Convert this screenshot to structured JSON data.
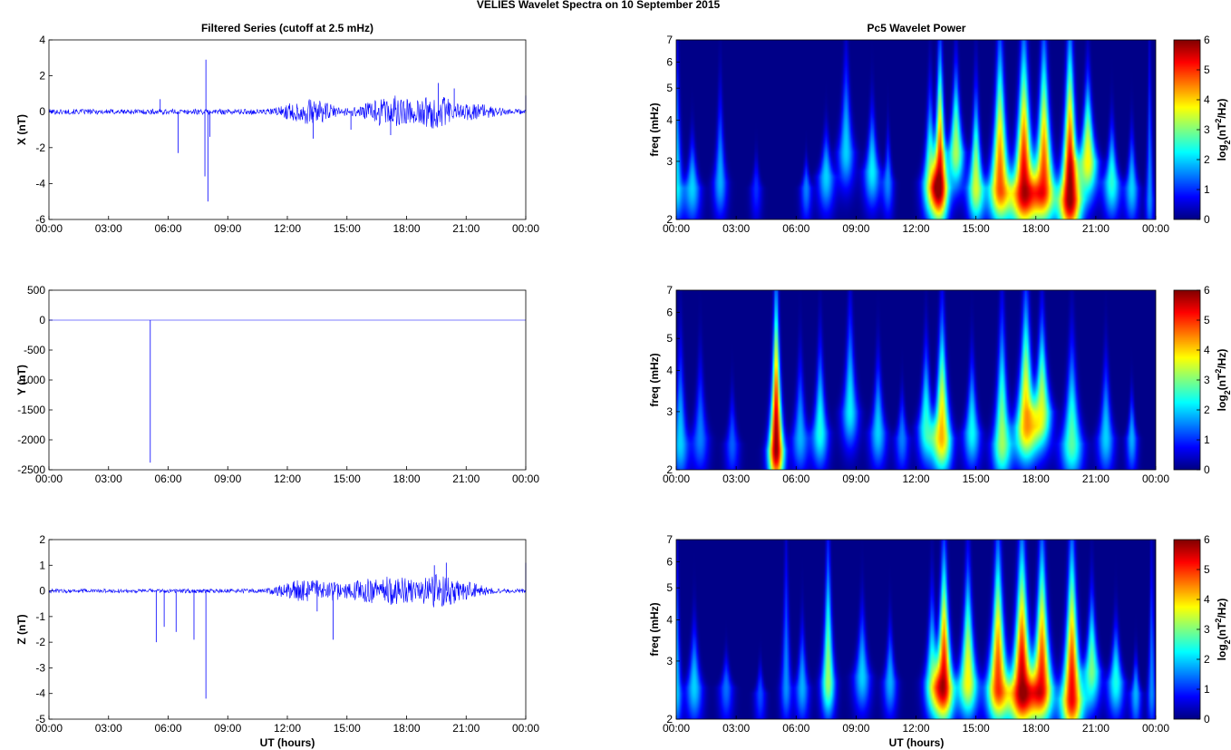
{
  "figure_title": "VELIES Wavelet Spectra on 10 September 2015",
  "left_title": "Filtered Series (cutoff at 2.5 mHz)",
  "right_title": "Pc5 Wavelet Power",
  "x_axis_label": "UT (hours)",
  "time_ticks": [
    "00:00",
    "03:00",
    "06:00",
    "09:00",
    "12:00",
    "15:00",
    "18:00",
    "21:00",
    "00:00"
  ],
  "colorbar": {
    "label_base": "log",
    "label_sub": "2",
    "label_open": "(nT",
    "label_sup": "2",
    "label_close": "/Hz)",
    "ticks": [
      "0",
      "1",
      "2",
      "3",
      "4",
      "5",
      "6"
    ],
    "range": [
      0,
      6
    ],
    "colormap": "jet"
  },
  "chart_data": [
    {
      "type": "line",
      "component": "X",
      "ylabel": "X (nT)",
      "xlim_hours": [
        0,
        24
      ],
      "ylim": [
        -6,
        4
      ],
      "yticks": [
        "4",
        "2",
        "0",
        "-2",
        "-4",
        "-6"
      ],
      "color": "#0000ff",
      "baseline_noise_amplitude": 0.15,
      "bursts": [
        {
          "hour": 12.5,
          "amplitude": 0.3
        },
        {
          "hour": 13.5,
          "amplitude": 0.4
        },
        {
          "hour": 16.5,
          "amplitude": 0.35
        },
        {
          "hour": 17.5,
          "amplitude": 0.6
        },
        {
          "hour": 19.5,
          "amplitude": 0.8
        },
        {
          "hour": 21.5,
          "amplitude": 0.3
        }
      ],
      "spikes": [
        {
          "hour": 5.6,
          "value": 0.7
        },
        {
          "hour": 6.5,
          "value": -2.3
        },
        {
          "hour": 7.9,
          "value": 2.9
        },
        {
          "hour": 7.85,
          "value": -3.6
        },
        {
          "hour": 8.0,
          "value": -5.0
        },
        {
          "hour": 8.1,
          "value": -1.4
        },
        {
          "hour": 13.3,
          "value": -1.5
        },
        {
          "hour": 15.2,
          "value": -1.0
        },
        {
          "hour": 17.2,
          "value": -1.3
        },
        {
          "hour": 19.6,
          "value": 1.6
        },
        {
          "hour": 20.4,
          "value": 1.3
        },
        {
          "hour": 24.0,
          "value": 0.9
        }
      ]
    },
    {
      "type": "line",
      "component": "Y",
      "ylabel": "Y (nT)",
      "xlim_hours": [
        0,
        24
      ],
      "ylim": [
        -2500,
        500
      ],
      "yticks": [
        "500",
        "0",
        "-500",
        "-1000",
        "-1500",
        "-2000",
        "-2500"
      ],
      "color": "#0000ff",
      "baseline_noise_amplitude": 0,
      "bursts": [],
      "spikes": [
        {
          "hour": 5.1,
          "value": -2380
        }
      ]
    },
    {
      "type": "line",
      "component": "Z",
      "ylabel": "Z (nT)",
      "xlim_hours": [
        0,
        24
      ],
      "ylim": [
        -5,
        2
      ],
      "yticks": [
        "2",
        "1",
        "0",
        "-1",
        "-2",
        "-3",
        "-4",
        "-5"
      ],
      "color": "#0000ff",
      "baseline_noise_amplitude": 0.08,
      "bursts": [
        {
          "hour": 12.5,
          "amplitude": 0.3
        },
        {
          "hour": 14.0,
          "amplitude": 0.3
        },
        {
          "hour": 16.0,
          "amplitude": 0.35
        },
        {
          "hour": 17.5,
          "amplitude": 0.45
        },
        {
          "hour": 19.5,
          "amplitude": 0.55
        },
        {
          "hour": 21.0,
          "amplitude": 0.25
        }
      ],
      "spikes": [
        {
          "hour": 5.4,
          "value": -2.0
        },
        {
          "hour": 5.8,
          "value": -1.4
        },
        {
          "hour": 6.4,
          "value": -1.6
        },
        {
          "hour": 7.3,
          "value": -1.9
        },
        {
          "hour": 7.9,
          "value": -4.2
        },
        {
          "hour": 13.5,
          "value": -0.8
        },
        {
          "hour": 14.3,
          "value": -1.9
        },
        {
          "hour": 19.4,
          "value": 1.0
        },
        {
          "hour": 20.0,
          "value": 1.1
        },
        {
          "hour": 24.0,
          "value": 1.1
        }
      ]
    },
    {
      "type": "heatmap",
      "component": "X",
      "ylabel": "freq (mHz)",
      "y_scale": "log",
      "ylim_mhz": [
        2,
        7
      ],
      "yticks": [
        "7",
        "6",
        "5",
        "4",
        "3",
        "2"
      ],
      "xlim_hours": [
        0,
        24
      ],
      "blobs": [
        {
          "hour": 0.0,
          "f": 2.5,
          "ampl": 2.2,
          "hw": 0.25,
          "top": 7.0
        },
        {
          "hour": 0.8,
          "f": 2.5,
          "ampl": 2.0,
          "hw": 0.3,
          "top": 3.6
        },
        {
          "hour": 2.2,
          "f": 2.6,
          "ampl": 1.8,
          "hw": 0.25,
          "top": 5.0
        },
        {
          "hour": 4.0,
          "f": 2.5,
          "ampl": 1.0,
          "hw": 0.2,
          "top": 3.2
        },
        {
          "hour": 6.5,
          "f": 2.5,
          "ampl": 1.5,
          "hw": 0.2,
          "top": 3.1
        },
        {
          "hour": 7.5,
          "f": 2.7,
          "ampl": 2.0,
          "hw": 0.3,
          "top": 3.8
        },
        {
          "hour": 8.5,
          "f": 3.2,
          "ampl": 2.0,
          "hw": 0.3,
          "top": 6.5
        },
        {
          "hour": 9.8,
          "f": 2.8,
          "ampl": 2.2,
          "hw": 0.3,
          "top": 4.5
        },
        {
          "hour": 10.6,
          "f": 2.6,
          "ampl": 1.5,
          "hw": 0.2,
          "top": 3.8
        },
        {
          "hour": 12.7,
          "f": 2.6,
          "ampl": 3.0,
          "hw": 0.3,
          "top": 5.0
        },
        {
          "hour": 13.2,
          "f": 2.5,
          "ampl": 5.5,
          "hw": 0.3,
          "top": 6.5
        },
        {
          "hour": 14.0,
          "f": 3.2,
          "ampl": 3.3,
          "hw": 0.3,
          "top": 6.0
        },
        {
          "hour": 15.0,
          "f": 2.5,
          "ampl": 3.5,
          "hw": 0.3,
          "top": 5.0
        },
        {
          "hour": 16.2,
          "f": 2.5,
          "ampl": 4.8,
          "hw": 0.4,
          "top": 7.0
        },
        {
          "hour": 17.4,
          "f": 2.4,
          "ampl": 5.6,
          "hw": 0.45,
          "top": 7.0
        },
        {
          "hour": 18.4,
          "f": 2.5,
          "ampl": 5.0,
          "hw": 0.4,
          "top": 7.0
        },
        {
          "hour": 19.7,
          "f": 2.3,
          "ampl": 6.0,
          "hw": 0.4,
          "top": 7.0
        },
        {
          "hour": 20.6,
          "f": 3.0,
          "ampl": 3.8,
          "hw": 0.35,
          "top": 5.5
        },
        {
          "hour": 21.8,
          "f": 2.6,
          "ampl": 2.5,
          "hw": 0.3,
          "top": 4.0
        },
        {
          "hour": 22.8,
          "f": 2.5,
          "ampl": 2.0,
          "hw": 0.25,
          "top": 3.8
        },
        {
          "hour": 23.7,
          "f": 2.3,
          "ampl": 1.6,
          "hw": 0.15,
          "top": 7.0
        }
      ]
    },
    {
      "type": "heatmap",
      "component": "Y",
      "ylabel": "freq (mHz)",
      "y_scale": "log",
      "ylim_mhz": [
        2,
        7
      ],
      "yticks": [
        "7",
        "6",
        "5",
        "4",
        "3",
        "2"
      ],
      "xlim_hours": [
        0,
        24
      ],
      "blobs": [
        {
          "hour": 0.2,
          "f": 2.4,
          "ampl": 2.0,
          "hw": 0.3,
          "top": 5.0
        },
        {
          "hour": 1.2,
          "f": 2.5,
          "ampl": 1.5,
          "hw": 0.3,
          "top": 4.5
        },
        {
          "hour": 2.8,
          "f": 2.4,
          "ampl": 1.3,
          "hw": 0.25,
          "top": 3.5
        },
        {
          "hour": 5.0,
          "f": 2.3,
          "ampl": 6.0,
          "hw": 0.28,
          "top": 7.0
        },
        {
          "hour": 6.2,
          "f": 2.5,
          "ampl": 1.8,
          "hw": 0.3,
          "top": 4.5
        },
        {
          "hour": 7.2,
          "f": 2.6,
          "ampl": 2.4,
          "hw": 0.3,
          "top": 5.0
        },
        {
          "hour": 8.7,
          "f": 3.0,
          "ampl": 2.2,
          "hw": 0.3,
          "top": 6.5
        },
        {
          "hour": 10.1,
          "f": 2.6,
          "ampl": 2.0,
          "hw": 0.3,
          "top": 4.5
        },
        {
          "hour": 11.3,
          "f": 2.5,
          "ampl": 1.5,
          "hw": 0.25,
          "top": 3.5
        },
        {
          "hour": 12.5,
          "f": 2.7,
          "ampl": 2.5,
          "hw": 0.3,
          "top": 5.0
        },
        {
          "hour": 13.3,
          "f": 2.5,
          "ampl": 4.2,
          "hw": 0.35,
          "top": 6.0
        },
        {
          "hour": 14.8,
          "f": 2.6,
          "ampl": 2.3,
          "hw": 0.3,
          "top": 4.5
        },
        {
          "hour": 16.3,
          "f": 2.4,
          "ampl": 3.2,
          "hw": 0.35,
          "top": 6.0
        },
        {
          "hour": 17.5,
          "f": 2.7,
          "ampl": 4.2,
          "hw": 0.4,
          "top": 7.0
        },
        {
          "hour": 18.3,
          "f": 3.0,
          "ampl": 3.5,
          "hw": 0.35,
          "top": 6.0
        },
        {
          "hour": 19.8,
          "f": 2.4,
          "ampl": 2.8,
          "hw": 0.4,
          "top": 5.0
        },
        {
          "hour": 21.5,
          "f": 2.5,
          "ampl": 2.0,
          "hw": 0.3,
          "top": 4.5
        },
        {
          "hour": 22.8,
          "f": 2.5,
          "ampl": 1.8,
          "hw": 0.2,
          "top": 3.5
        }
      ]
    },
    {
      "type": "heatmap",
      "component": "Z",
      "ylabel": "freq (mHz)",
      "y_scale": "log",
      "ylim_mhz": [
        2,
        7
      ],
      "yticks": [
        "7",
        "6",
        "5",
        "4",
        "3",
        "2"
      ],
      "xlim_hours": [
        0,
        24
      ],
      "blobs": [
        {
          "hour": 0.0,
          "f": 2.4,
          "ampl": 2.0,
          "hw": 0.2,
          "top": 7.0
        },
        {
          "hour": 0.9,
          "f": 2.5,
          "ampl": 2.0,
          "hw": 0.3,
          "top": 4.0
        },
        {
          "hour": 2.5,
          "f": 2.5,
          "ampl": 1.4,
          "hw": 0.25,
          "top": 3.2
        },
        {
          "hour": 4.2,
          "f": 2.4,
          "ampl": 1.2,
          "hw": 0.2,
          "top": 3.0
        },
        {
          "hour": 5.5,
          "f": 2.5,
          "ampl": 1.6,
          "hw": 0.2,
          "top": 7.0
        },
        {
          "hour": 6.3,
          "f": 2.5,
          "ampl": 1.8,
          "hw": 0.25,
          "top": 4.0
        },
        {
          "hour": 7.6,
          "f": 2.6,
          "ampl": 3.2,
          "hw": 0.25,
          "top": 7.0
        },
        {
          "hour": 9.3,
          "f": 2.7,
          "ampl": 2.0,
          "hw": 0.3,
          "top": 4.5
        },
        {
          "hour": 10.7,
          "f": 2.6,
          "ampl": 1.8,
          "hw": 0.25,
          "top": 4.0
        },
        {
          "hour": 12.8,
          "f": 2.6,
          "ampl": 2.6,
          "hw": 0.3,
          "top": 5.0
        },
        {
          "hour": 13.4,
          "f": 2.5,
          "ampl": 5.5,
          "hw": 0.35,
          "top": 6.5
        },
        {
          "hour": 14.6,
          "f": 2.6,
          "ampl": 3.8,
          "hw": 0.35,
          "top": 6.0
        },
        {
          "hour": 16.1,
          "f": 2.5,
          "ampl": 5.0,
          "hw": 0.4,
          "top": 7.0
        },
        {
          "hour": 17.3,
          "f": 2.4,
          "ampl": 5.8,
          "hw": 0.45,
          "top": 7.0
        },
        {
          "hour": 18.3,
          "f": 2.5,
          "ampl": 5.2,
          "hw": 0.4,
          "top": 7.0
        },
        {
          "hour": 19.8,
          "f": 2.3,
          "ampl": 5.4,
          "hw": 0.4,
          "top": 7.0
        },
        {
          "hour": 20.8,
          "f": 2.8,
          "ampl": 3.0,
          "hw": 0.3,
          "top": 5.0
        },
        {
          "hour": 22.0,
          "f": 2.6,
          "ampl": 2.4,
          "hw": 0.3,
          "top": 4.0
        },
        {
          "hour": 23.0,
          "f": 2.4,
          "ampl": 1.8,
          "hw": 0.2,
          "top": 3.2
        },
        {
          "hour": 23.8,
          "f": 2.4,
          "ampl": 1.6,
          "hw": 0.15,
          "top": 7.0
        }
      ]
    }
  ]
}
